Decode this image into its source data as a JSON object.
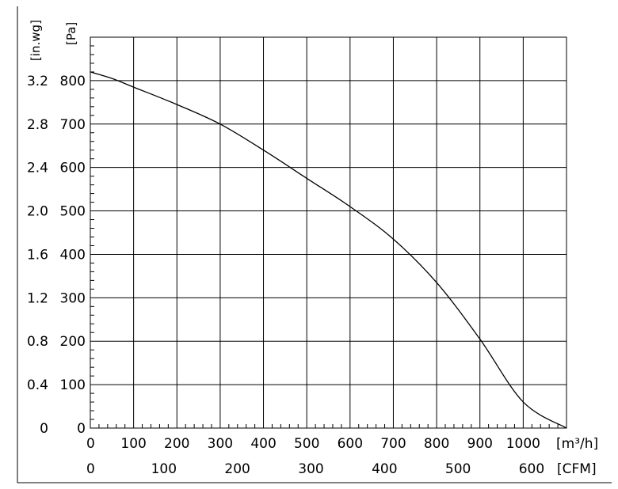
{
  "chart_data": {
    "type": "line",
    "title": "",
    "x_axis": {
      "unit": "[m³/h]",
      "range": [
        0,
        1100
      ],
      "ticks": [
        0,
        100,
        200,
        300,
        400,
        500,
        600,
        700,
        800,
        900,
        1000
      ],
      "tick_labels": [
        "0",
        "100",
        "200",
        "300",
        "400",
        "500",
        "600",
        "700",
        "800",
        "900",
        "1000"
      ]
    },
    "x2_axis": {
      "unit": "[CFM]",
      "ticks": [
        0,
        100,
        200,
        300,
        400,
        500,
        600
      ],
      "tick_labels": [
        "0",
        "100",
        "200",
        "300",
        "400",
        "500",
        "600"
      ]
    },
    "y_axis": {
      "unit": "[Pa]",
      "range": [
        0,
        900
      ],
      "ticks": [
        0,
        100,
        200,
        300,
        400,
        500,
        600,
        700,
        800
      ],
      "tick_labels": [
        "0",
        "100",
        "200",
        "300",
        "400",
        "500",
        "600",
        "700",
        "800"
      ]
    },
    "y2_axis": {
      "unit": "[in.wg]",
      "tick_labels": [
        "0",
        "0.4",
        "0.8",
        "1.2",
        "1.6",
        "2.0",
        "2.4",
        "2.8",
        "3.2"
      ]
    },
    "grid": true,
    "series": [
      {
        "x": [
          0,
          50,
          100,
          200,
          300,
          400,
          500,
          600,
          700,
          800,
          900,
          1000,
          1100
        ],
        "y": [
          820,
          805,
          785,
          745,
          700,
          640,
          575,
          510,
          435,
          335,
          205,
          60,
          0
        ]
      }
    ]
  }
}
